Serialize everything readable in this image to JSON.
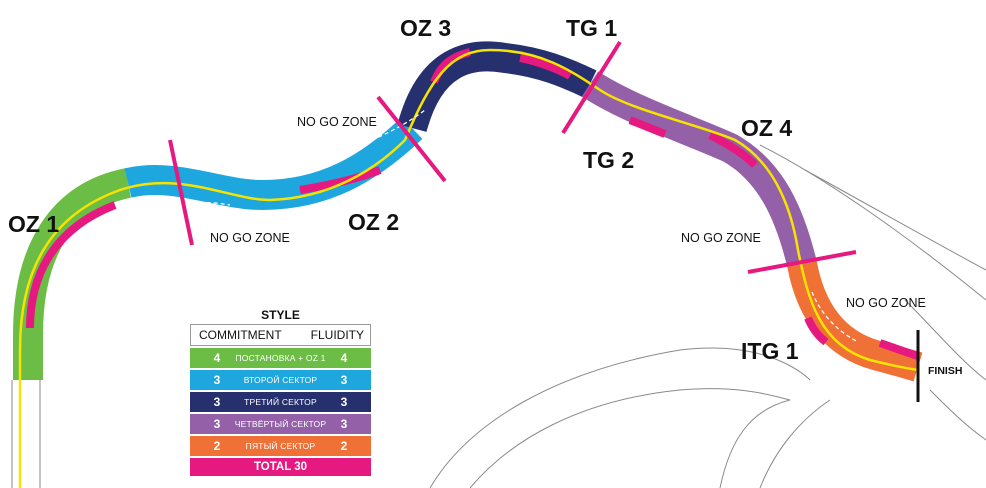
{
  "colors": {
    "sector1": "#6cbd45",
    "sector2": "#1ea7df",
    "sector3": "#27306e",
    "sector4": "#9461a8",
    "sector5": "#ef7135",
    "zone_marker": "#e5197f",
    "racing_line": "#f6e400"
  },
  "labels": {
    "oz1": "OZ 1",
    "oz2": "OZ 2",
    "oz3": "OZ 3",
    "oz4": "OZ 4",
    "tg1": "TG 1",
    "tg2": "TG 2",
    "itg1": "ITG 1",
    "no_go_1": "NO GO ZONE",
    "no_go_2": "NO GO ZONE",
    "no_go_3": "NO GO ZONE",
    "no_go_4": "NO GO ZONE",
    "finish": "FINISH"
  },
  "style_table": {
    "title": "STYLE",
    "col_commitment": "COMMITMENT",
    "col_fluidity": "FLUIDITY",
    "rows": [
      {
        "commitment": "4",
        "name": "ПОСТАНОВКА + OZ 1",
        "fluidity": "4",
        "color_key": "sector1"
      },
      {
        "commitment": "3",
        "name": "ВТОРОЙ СЕКТОР",
        "fluidity": "3",
        "color_key": "sector2"
      },
      {
        "commitment": "3",
        "name": "ТРЕТИЙ СЕКТОР",
        "fluidity": "3",
        "color_key": "sector3"
      },
      {
        "commitment": "3",
        "name": "ЧЕТВЁРТЫЙ СЕКТОР",
        "fluidity": "3",
        "color_key": "sector4"
      },
      {
        "commitment": "2",
        "name": "ПЯТЫЙ СЕКТОР",
        "fluidity": "2",
        "color_key": "sector5"
      }
    ],
    "total": "TOTAL 30"
  }
}
